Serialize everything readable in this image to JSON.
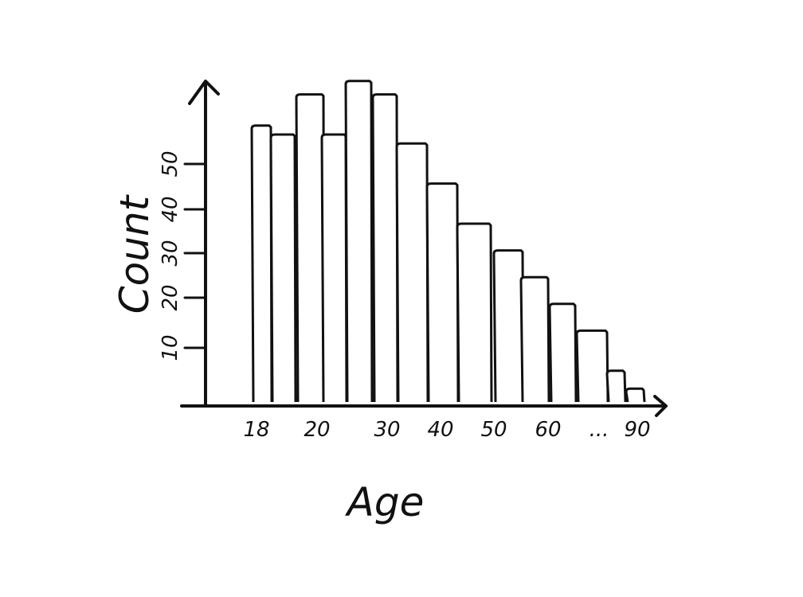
{
  "chart_data": {
    "type": "bar",
    "xlabel": "Age",
    "ylabel": "Count",
    "x_tick_labels": [
      "18",
      "20",
      "30",
      "40",
      "50",
      "60",
      "...",
      "90"
    ],
    "y_tick_labels": [
      "10",
      "20",
      "30",
      "40",
      "50"
    ],
    "values": [
      62,
      60,
      69,
      60,
      72,
      69,
      58,
      49,
      40,
      34,
      28,
      22,
      16,
      7,
      3
    ],
    "ylim": [
      0,
      75
    ],
    "grid": false,
    "legend": "none",
    "colors": {
      "ink": "#111111",
      "background": "#ffffff"
    }
  }
}
